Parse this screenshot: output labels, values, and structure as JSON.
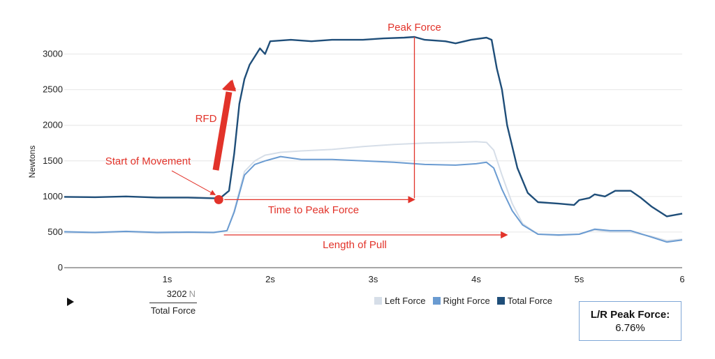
{
  "chart_data": {
    "type": "line",
    "title": "",
    "xlabel": "",
    "ylabel": "Newtons",
    "xlim": [
      0,
      6
    ],
    "ylim": [
      0,
      3250
    ],
    "x_ticks": [
      1,
      2,
      3,
      4,
      5,
      6
    ],
    "x_tick_labels": [
      "1s",
      "2s",
      "3s",
      "4s",
      "5s",
      "6"
    ],
    "y_ticks": [
      0,
      500,
      1000,
      1500,
      2000,
      2500,
      3000
    ],
    "y_tick_labels": [
      "0",
      "500",
      "1000",
      "1500",
      "2000",
      "2500",
      "3000"
    ],
    "grid": true,
    "legend_position": "bottom",
    "series": [
      {
        "name": "Left Force",
        "color": "#d6dee8",
        "points": [
          [
            0,
            490
          ],
          [
            0.3,
            488
          ],
          [
            0.6,
            500
          ],
          [
            0.9,
            485
          ],
          [
            1.2,
            490
          ],
          [
            1.45,
            488
          ],
          [
            1.58,
            520
          ],
          [
            1.65,
            800
          ],
          [
            1.75,
            1350
          ],
          [
            1.85,
            1500
          ],
          [
            1.95,
            1580
          ],
          [
            2.1,
            1620
          ],
          [
            2.3,
            1640
          ],
          [
            2.6,
            1660
          ],
          [
            2.9,
            1700
          ],
          [
            3.2,
            1730
          ],
          [
            3.5,
            1750
          ],
          [
            3.8,
            1760
          ],
          [
            4.0,
            1770
          ],
          [
            4.1,
            1760
          ],
          [
            4.17,
            1650
          ],
          [
            4.25,
            1300
          ],
          [
            4.35,
            900
          ],
          [
            4.45,
            620
          ],
          [
            4.6,
            470
          ],
          [
            4.8,
            450
          ],
          [
            5.0,
            470
          ],
          [
            5.15,
            530
          ],
          [
            5.3,
            500
          ],
          [
            5.5,
            500
          ],
          [
            5.7,
            440
          ],
          [
            5.85,
            380
          ],
          [
            6.0,
            400
          ]
        ]
      },
      {
        "name": "Right Force",
        "color": "#6a9bd1",
        "points": [
          [
            0,
            505
          ],
          [
            0.3,
            495
          ],
          [
            0.6,
            510
          ],
          [
            0.9,
            495
          ],
          [
            1.2,
            500
          ],
          [
            1.45,
            495
          ],
          [
            1.58,
            520
          ],
          [
            1.65,
            780
          ],
          [
            1.75,
            1300
          ],
          [
            1.85,
            1450
          ],
          [
            1.95,
            1500
          ],
          [
            2.1,
            1560
          ],
          [
            2.3,
            1520
          ],
          [
            2.6,
            1520
          ],
          [
            2.9,
            1500
          ],
          [
            3.2,
            1480
          ],
          [
            3.5,
            1450
          ],
          [
            3.8,
            1440
          ],
          [
            4.0,
            1460
          ],
          [
            4.1,
            1480
          ],
          [
            4.17,
            1400
          ],
          [
            4.25,
            1100
          ],
          [
            4.35,
            800
          ],
          [
            4.45,
            600
          ],
          [
            4.6,
            470
          ],
          [
            4.8,
            460
          ],
          [
            5.0,
            470
          ],
          [
            5.15,
            540
          ],
          [
            5.3,
            520
          ],
          [
            5.5,
            520
          ],
          [
            5.7,
            430
          ],
          [
            5.85,
            360
          ],
          [
            6.0,
            390
          ]
        ]
      },
      {
        "name": "Total Force",
        "color": "#1f4e79",
        "points": [
          [
            0,
            995
          ],
          [
            0.3,
            990
          ],
          [
            0.6,
            1000
          ],
          [
            0.9,
            985
          ],
          [
            1.2,
            985
          ],
          [
            1.45,
            975
          ],
          [
            1.52,
            985
          ],
          [
            1.6,
            1080
          ],
          [
            1.65,
            1600
          ],
          [
            1.7,
            2300
          ],
          [
            1.75,
            2650
          ],
          [
            1.8,
            2850
          ],
          [
            1.9,
            3080
          ],
          [
            1.95,
            3000
          ],
          [
            2.0,
            3180
          ],
          [
            2.2,
            3200
          ],
          [
            2.4,
            3180
          ],
          [
            2.6,
            3200
          ],
          [
            2.9,
            3200
          ],
          [
            3.1,
            3220
          ],
          [
            3.3,
            3230
          ],
          [
            3.4,
            3240
          ],
          [
            3.5,
            3200
          ],
          [
            3.7,
            3180
          ],
          [
            3.8,
            3150
          ],
          [
            3.95,
            3200
          ],
          [
            4.1,
            3230
          ],
          [
            4.15,
            3200
          ],
          [
            4.2,
            2800
          ],
          [
            4.25,
            2500
          ],
          [
            4.3,
            2000
          ],
          [
            4.4,
            1400
          ],
          [
            4.5,
            1050
          ],
          [
            4.6,
            920
          ],
          [
            4.8,
            900
          ],
          [
            4.95,
            880
          ],
          [
            5.0,
            950
          ],
          [
            5.1,
            980
          ],
          [
            5.15,
            1030
          ],
          [
            5.25,
            1000
          ],
          [
            5.35,
            1080
          ],
          [
            5.5,
            1080
          ],
          [
            5.6,
            980
          ],
          [
            5.7,
            860
          ],
          [
            5.85,
            720
          ],
          [
            6.0,
            760
          ]
        ]
      }
    ],
    "annotations": [
      {
        "text": "Peak Force",
        "x": 3.4,
        "y": 3240
      },
      {
        "text": "RFD"
      },
      {
        "text": "Start of Movement",
        "x": 1.5,
        "y": 975
      },
      {
        "text": "Time to Peak Force",
        "x_start": 1.5,
        "x_end": 3.4,
        "y": 975
      },
      {
        "text": "Length of Pull",
        "x_start": 1.55,
        "x_end": 4.3,
        "y": 480
      }
    ]
  },
  "readout": {
    "value": "3202",
    "unit": "N",
    "label": "Total Force"
  },
  "info_box": {
    "title": "L/R Peak Force:",
    "value": "6.76%"
  },
  "colors": {
    "annotation": "#e2332a",
    "grid": "#e6e6e6",
    "box_border": "#7fa7d6"
  },
  "icons": {
    "play": "play-icon"
  }
}
